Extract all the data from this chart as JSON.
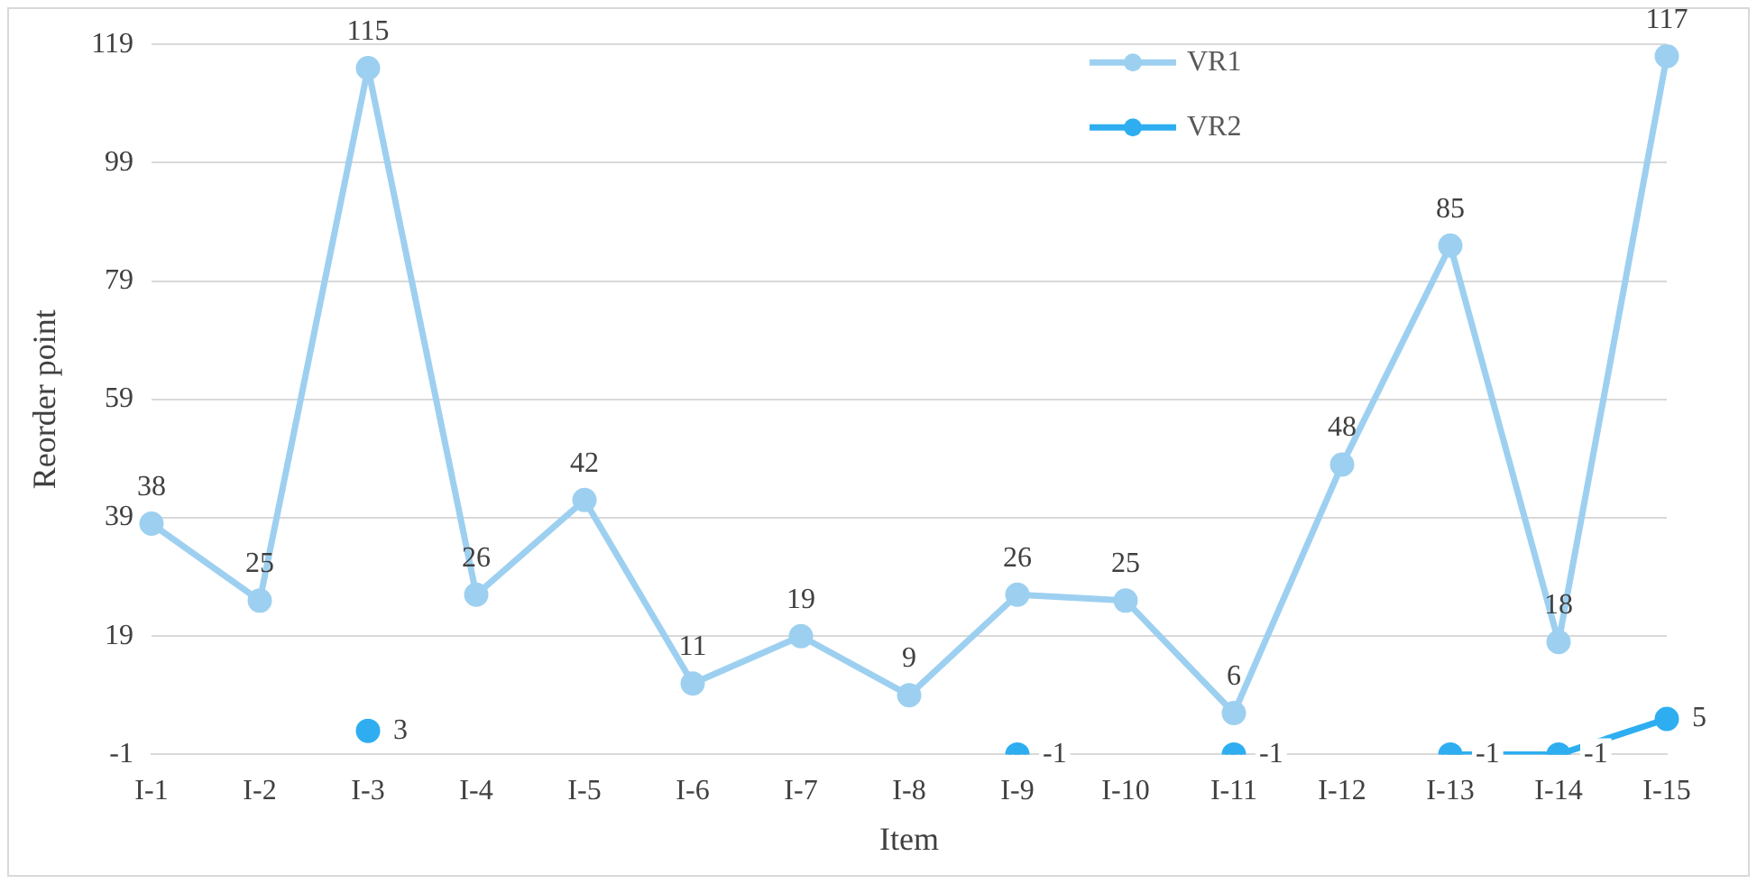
{
  "chart_data": {
    "type": "line",
    "xlabel": "Item",
    "ylabel": "Reorder point",
    "categories": [
      "I-1",
      "I-2",
      "I-3",
      "I-4",
      "I-5",
      "I-6",
      "I-7",
      "I-8",
      "I-9",
      "I-10",
      "I-11",
      "I-12",
      "I-13",
      "I-14",
      "I-15"
    ],
    "series": [
      {
        "name": "VR1",
        "color": "#9dd0f0",
        "values": [
          38,
          25,
          115,
          26,
          42,
          11,
          19,
          9,
          26,
          25,
          6,
          48,
          85,
          18,
          117
        ]
      },
      {
        "name": "VR2",
        "color": "#2eaef0",
        "values": [
          null,
          null,
          3,
          null,
          null,
          null,
          null,
          null,
          -1,
          null,
          -1,
          null,
          -1,
          -1,
          5
        ]
      }
    ],
    "ylim": [
      -1,
      119
    ],
    "yticks": [
      -1,
      19,
      39,
      59,
      79,
      99,
      119
    ],
    "grid": "y",
    "legend": "top right",
    "marker": "circle",
    "line_style": "solid",
    "data_labels": true
  }
}
